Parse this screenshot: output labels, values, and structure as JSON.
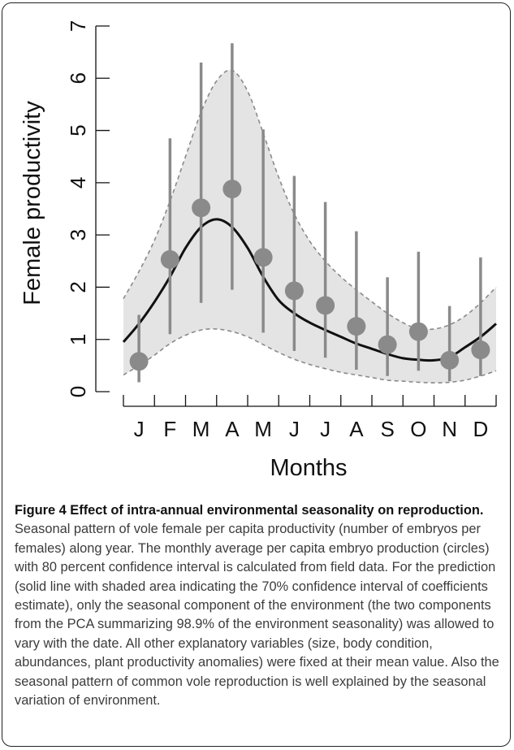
{
  "chart_data": {
    "type": "line",
    "xlabel": "Months",
    "ylabel": "Female productivity",
    "ylim": [
      0,
      7
    ],
    "yticks": [
      "0",
      "1",
      "2",
      "3",
      "4",
      "5",
      "6",
      "7"
    ],
    "month_labels": [
      "J",
      "F",
      "M",
      "A",
      "M",
      "J",
      "J",
      "A",
      "S",
      "O",
      "N",
      "D"
    ],
    "grid": false,
    "monthly_average": {
      "months": [
        1,
        2,
        3,
        4,
        5,
        6,
        7,
        8,
        9,
        10,
        11,
        12
      ],
      "mean": [
        0.58,
        2.53,
        3.52,
        3.88,
        2.57,
        1.93,
        1.65,
        1.25,
        0.9,
        1.15,
        0.6,
        0.8
      ],
      "ci_low": [
        0.18,
        1.1,
        1.7,
        1.95,
        1.13,
        0.78,
        0.65,
        0.42,
        0.3,
        0.4,
        0.2,
        0.3
      ],
      "ci_high": [
        1.47,
        4.85,
        6.3,
        6.67,
        5.02,
        4.13,
        3.63,
        3.07,
        2.19,
        2.68,
        1.64,
        2.57
      ]
    },
    "prediction": {
      "x": [
        0.5,
        1.0,
        1.5,
        2.0,
        2.5,
        3.0,
        3.5,
        4.0,
        4.5,
        5.0,
        5.5,
        6.0,
        6.5,
        7.0,
        7.5,
        8.0,
        8.5,
        9.0,
        9.5,
        10.0,
        10.5,
        11.0,
        11.5,
        12.0,
        12.5
      ],
      "y": [
        0.95,
        1.3,
        1.72,
        2.2,
        2.75,
        3.15,
        3.3,
        3.15,
        2.75,
        2.2,
        1.75,
        1.5,
        1.32,
        1.18,
        1.05,
        0.92,
        0.82,
        0.72,
        0.64,
        0.61,
        0.6,
        0.66,
        0.85,
        1.05,
        1.3
      ],
      "ci_low": [
        0.32,
        0.5,
        0.7,
        0.92,
        1.08,
        1.18,
        1.2,
        1.15,
        1.05,
        0.9,
        0.75,
        0.62,
        0.52,
        0.44,
        0.37,
        0.32,
        0.27,
        0.22,
        0.2,
        0.18,
        0.17,
        0.18,
        0.22,
        0.3,
        0.4
      ],
      "ci_high": [
        1.78,
        2.3,
        2.9,
        3.65,
        4.5,
        5.35,
        5.95,
        6.15,
        5.75,
        4.95,
        4.1,
        3.4,
        2.88,
        2.5,
        2.2,
        1.95,
        1.72,
        1.5,
        1.32,
        1.2,
        1.2,
        1.28,
        1.45,
        1.7,
        2.0
      ]
    },
    "colors": {
      "points": "#8a8a8a",
      "bars": "#8a8a8a",
      "line": "#111111",
      "band_fill": "#e4e4e4",
      "band_edge": "#8a8a8a"
    }
  },
  "caption": {
    "title": "Figure 4 Effect of intra-annual environmental seasonality on reproduction.",
    "body": " Seasonal pattern of vole female per capita productivity (number of embryos per females) along year. The monthly average per capita embryo production (circles) with 80 percent confidence interval is calculated from field data. For the prediction (solid line with shaded area indicating the 70% confidence interval of coefficients estimate), only the seasonal component of the environment (the two components from the PCA summarizing 98.9% of the environment seasonality) was allowed to vary with the date. All other explanatory variables (size, body condition, abundances, plant productivity anomalies) were fixed at their mean value. Also the seasonal pattern of common vole reproduction is well explained by the seasonal variation of environment."
  }
}
